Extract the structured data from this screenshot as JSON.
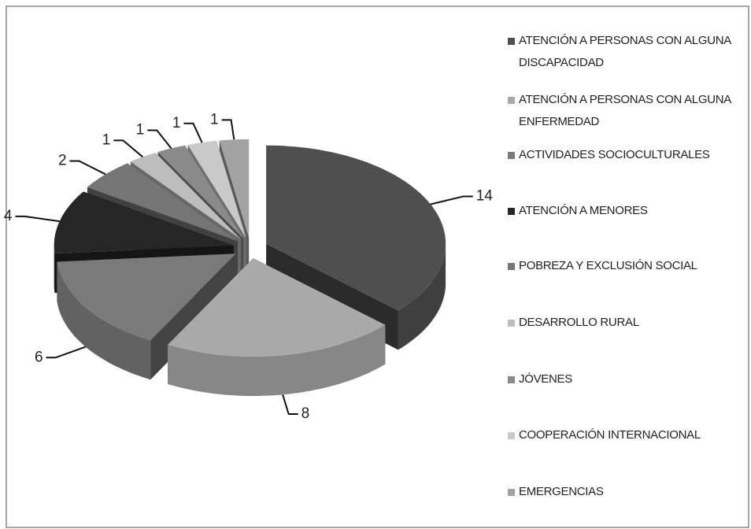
{
  "chart_data": {
    "type": "pie3d",
    "categories": [
      "ATENCIÓN A PERSONAS CON ALGUNA DISCAPACIDAD",
      "ATENCIÓN A PERSONAS CON ALGUNA ENFERMEDAD",
      "ACTIVIDADES SOCIOCULTURALES",
      "ATENCIÓN A MENORES",
      "POBREZA Y EXCLUSIÓN SOCIAL",
      "DESARROLLO RURAL",
      "JÓVENES",
      "COOPERACIÓN INTERNACIONAL",
      "EMERGENCIAS"
    ],
    "values": [
      14,
      8,
      6,
      4,
      2,
      1,
      1,
      1,
      1
    ],
    "colors": [
      "#4f4f4f",
      "#a9a9a9",
      "#7a7a7a",
      "#262626",
      "#767676",
      "#bdbdbd",
      "#8a8a8a",
      "#c9c9c9",
      "#a3a3a3"
    ],
    "legend": "right"
  }
}
